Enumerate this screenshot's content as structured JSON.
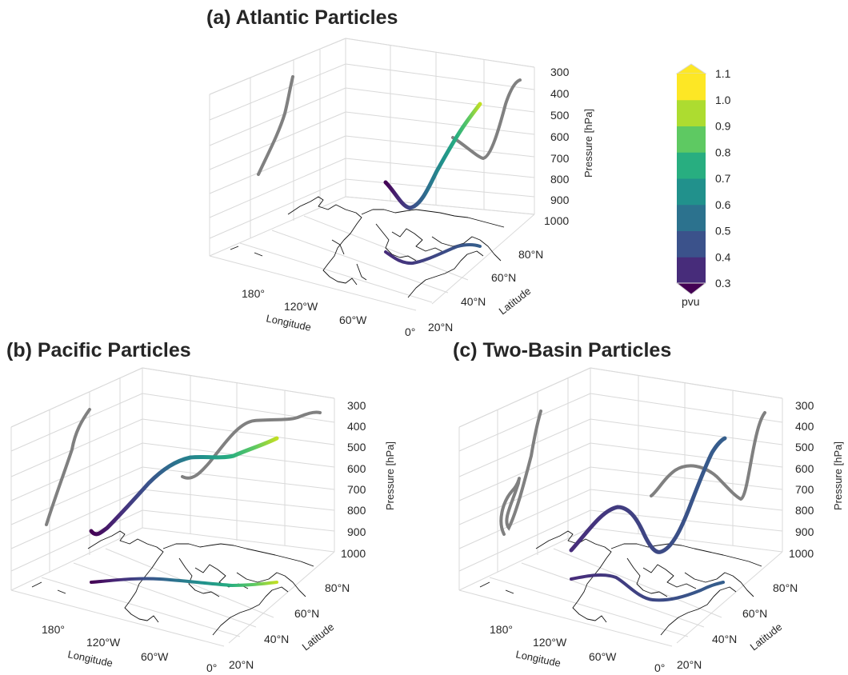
{
  "colorbar": {
    "label": "pvu",
    "ticks": [
      "0.3",
      "0.4",
      "0.5",
      "0.6",
      "0.7",
      "0.8",
      "0.9",
      "1.0",
      "1.1"
    ],
    "colors": [
      "#472c7a",
      "#3b528b",
      "#2c728e",
      "#21918c",
      "#28ae80",
      "#5ec962",
      "#addc30",
      "#fde725"
    ],
    "under_color": "#440154",
    "over_color": "#fde725"
  },
  "chart_data": [
    {
      "type": "line",
      "projection": "3d",
      "title": "(a) Atlantic Particles",
      "xlabel": "Longitude",
      "ylabel": "Latitude",
      "zlabel": "Pressure [hPa]",
      "xticks": [
        "180°",
        "120°W",
        "60°W",
        "0°"
      ],
      "yticks": [
        "20°N",
        "40°N",
        "60°N",
        "80°N"
      ],
      "zticks": [
        "300",
        "400",
        "500",
        "600",
        "700",
        "800",
        "900",
        "1000"
      ],
      "zlim": [
        1000,
        300
      ],
      "color_variable": "pvu",
      "series": [
        {
          "lon": [
            -75,
            -60,
            -45,
            -30,
            -15,
            -5
          ],
          "lat": [
            50,
            48,
            49,
            53,
            58,
            62
          ],
          "pressure": [
            820,
            940,
            800,
            620,
            500,
            450
          ],
          "pv": [
            0.45,
            0.4,
            0.5,
            0.6,
            0.65,
            0.7
          ]
        }
      ]
    },
    {
      "type": "line",
      "projection": "3d",
      "title": "(b) Pacific Particles",
      "xlabel": "Longitude",
      "ylabel": "Latitude",
      "zlabel": "Pressure [hPa]",
      "xticks": [
        "180°",
        "120°W",
        "60°W",
        "0°"
      ],
      "yticks": [
        "20°N",
        "40°N",
        "60°N",
        "80°N"
      ],
      "zticks": [
        "300",
        "400",
        "500",
        "600",
        "700",
        "800",
        "900",
        "1000"
      ],
      "zlim": [
        1000,
        300
      ],
      "color_variable": "pvu",
      "series": [
        {
          "lon": [
            -170,
            -140,
            -110,
            -80,
            -50,
            -20,
            -5
          ],
          "lat": [
            42,
            43,
            44,
            45,
            45,
            46,
            47
          ],
          "pressure": [
            900,
            860,
            720,
            580,
            560,
            520,
            460
          ],
          "pv": [
            0.35,
            0.45,
            0.6,
            0.7,
            0.8,
            0.95,
            1.05
          ]
        }
      ]
    },
    {
      "type": "line",
      "projection": "3d",
      "title": "(c) Two-Basin Particles",
      "xlabel": "Longitude",
      "ylabel": "Latitude",
      "zlabel": "Pressure [hPa]",
      "xticks": [
        "180°",
        "120°W",
        "60°W",
        "0°"
      ],
      "yticks": [
        "20°N",
        "40°N",
        "60°N",
        "80°N"
      ],
      "zticks": [
        "300",
        "400",
        "500",
        "600",
        "700",
        "800",
        "900",
        "1000"
      ],
      "zlim": [
        1000,
        300
      ],
      "color_variable": "pvu",
      "series": [
        {
          "lon": [
            -160,
            -130,
            -100,
            -70,
            -45,
            -25,
            -10
          ],
          "lat": [
            40,
            43,
            46,
            48,
            50,
            54,
            58
          ],
          "pressure": [
            960,
            780,
            820,
            980,
            760,
            520,
            450
          ],
          "pv": [
            0.4,
            0.42,
            0.44,
            0.45,
            0.47,
            0.48,
            0.5
          ]
        }
      ]
    }
  ]
}
